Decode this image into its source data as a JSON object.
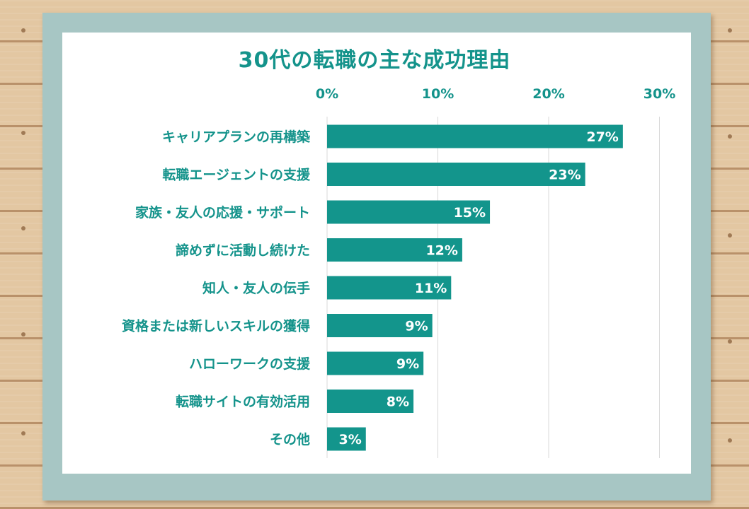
{
  "chart_data": {
    "type": "bar",
    "orientation": "horizontal",
    "title": "30代の転職の主な成功理由",
    "xlim": [
      0,
      30
    ],
    "xticks": [
      "0%",
      "10%",
      "20%",
      "30%"
    ],
    "xtick_values": [
      0,
      10,
      20,
      30
    ],
    "grid": true,
    "categories": [
      "キャリアプランの再構築",
      "転職エージェントの支援",
      "家族・友人の応援・サポート",
      "諦めずに活動し続けた",
      "知人・友人の伝手",
      "資格または新しいスキルの獲得",
      "ハローワークの支援",
      "転職サイトの有効活用",
      "その他"
    ],
    "values": [
      26.7,
      23.3,
      14.7,
      12.2,
      11.2,
      9.5,
      8.7,
      7.8,
      3.5
    ],
    "labels": [
      "27%",
      "23%",
      "15%",
      "12%",
      "11%",
      "9%",
      "9%",
      "8%",
      "3%"
    ],
    "colors": {
      "bar": "#13958c",
      "text": "#14938b",
      "grid": "#d9d9d9"
    }
  }
}
